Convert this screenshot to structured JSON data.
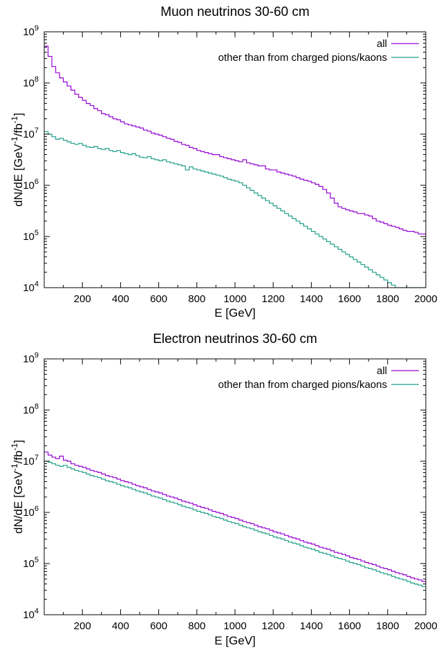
{
  "chart_data": [
    {
      "type": "line",
      "title": "Muon neutrinos 30-60 cm",
      "xlabel": "E [GeV]",
      "ylabel": {
        "base": "dN/dE [GeV",
        "exp1": "-1",
        "mid": "/fb",
        "exp2": "-1",
        "end": "]"
      },
      "xlim": [
        0,
        2000
      ],
      "ylim": [
        10000,
        1000000000
      ],
      "yscale": "log",
      "x_ticks": [
        200,
        400,
        600,
        800,
        1000,
        1200,
        1400,
        1600,
        1800,
        2000
      ],
      "y_ticks": [
        {
          "value": 10000,
          "base": "10",
          "exp": "4"
        },
        {
          "value": 100000,
          "base": "10",
          "exp": "5"
        },
        {
          "value": 1000000,
          "base": "10",
          "exp": "6"
        },
        {
          "value": 10000000,
          "base": "10",
          "exp": "7"
        },
        {
          "value": 100000000,
          "base": "10",
          "exp": "8"
        },
        {
          "value": 1000000000,
          "base": "10",
          "exp": "9"
        }
      ],
      "bin_width": 20,
      "legend_position": "top-right",
      "series": [
        {
          "name": "all",
          "color": "#9400d3",
          "log10_values": [
            8.72,
            8.52,
            8.32,
            8.2,
            8.1,
            8.02,
            7.94,
            7.86,
            7.78,
            7.72,
            7.66,
            7.6,
            7.56,
            7.5,
            7.46,
            7.4,
            7.38,
            7.34,
            7.3,
            7.28,
            7.24,
            7.2,
            7.18,
            7.16,
            7.14,
            7.12,
            7.08,
            7.06,
            7.02,
            7.0,
            6.98,
            6.95,
            6.92,
            6.9,
            6.86,
            6.84,
            6.8,
            6.78,
            6.74,
            6.72,
            6.68,
            6.66,
            6.64,
            6.62,
            6.6,
            6.6,
            6.56,
            6.54,
            6.52,
            6.5,
            6.48,
            6.46,
            6.5,
            6.44,
            6.42,
            6.4,
            6.38,
            6.38,
            6.32,
            6.3,
            6.3,
            6.26,
            6.24,
            6.22,
            6.2,
            6.18,
            6.15,
            6.12,
            6.1,
            6.08,
            6.05,
            6.02,
            5.98,
            5.92,
            5.85,
            5.75,
            5.65,
            5.58,
            5.55,
            5.52,
            5.5,
            5.48,
            5.45,
            5.45,
            5.42,
            5.4,
            5.35,
            5.3,
            5.28,
            5.25,
            5.22,
            5.2,
            5.18,
            5.15,
            5.12,
            5.1,
            5.1,
            5.08,
            5.05,
            5.05,
            5.02,
            5.0,
            4.95,
            4.92,
            4.9,
            4.9,
            4.88,
            4.85,
            4.85,
            4.8,
            4.82,
            4.8,
            4.78,
            4.75,
            4.72,
            4.72,
            4.7,
            4.68,
            4.65,
            4.62,
            4.6,
            4.62,
            4.58,
            4.55,
            4.52,
            4.52,
            4.5,
            4.48,
            4.46,
            4.44,
            4.42,
            4.4,
            4.38,
            4.36,
            4.35,
            4.35,
            4.32,
            4.3,
            4.3,
            4.28,
            4.26,
            4.25,
            4.24,
            4.22,
            4.2,
            4.18,
            4.17,
            4.16,
            4.15,
            4.14,
            4.13,
            4.12,
            4.11,
            4.1,
            4.1,
            4.09,
            4.08,
            4.08,
            4.07,
            4.06,
            4.05,
            4.05,
            4.04,
            4.04,
            4.03,
            4.03,
            4.02,
            4.02,
            4.01,
            4.01
          ]
        },
        {
          "name": "other than from charged pions/kaons",
          "color": "#1f9e89",
          "log10_values": [
            7.05,
            7.0,
            6.95,
            6.9,
            6.92,
            6.88,
            6.85,
            6.82,
            6.8,
            6.82,
            6.78,
            6.75,
            6.74,
            6.76,
            6.72,
            6.7,
            6.72,
            6.68,
            6.66,
            6.68,
            6.64,
            6.62,
            6.6,
            6.62,
            6.58,
            6.55,
            6.54,
            6.56,
            6.52,
            6.5,
            6.48,
            6.5,
            6.46,
            6.44,
            6.42,
            6.4,
            6.38,
            6.3,
            6.36,
            6.32,
            6.3,
            6.28,
            6.26,
            6.24,
            6.22,
            6.2,
            6.18,
            6.15,
            6.12,
            6.1,
            6.08,
            6.05,
            6.0,
            5.95,
            5.9,
            5.85,
            5.8,
            5.75,
            5.7,
            5.65,
            5.6,
            5.55,
            5.5,
            5.45,
            5.4,
            5.35,
            5.3,
            5.25,
            5.2,
            5.15,
            5.1,
            5.05,
            5.0,
            4.95,
            4.9,
            4.85,
            4.8,
            4.75,
            4.7,
            4.65,
            4.6,
            4.55,
            4.5,
            4.45,
            4.4,
            4.35,
            4.3,
            4.25,
            4.2,
            4.15,
            4.1,
            4.05,
            4.0,
            4.0,
            4.0,
            4.0,
            4.0,
            4.0,
            4.0,
            4.0,
            4.0,
            4.0,
            4.0,
            4.0,
            4.0,
            4.0,
            4.0,
            4.0,
            4.0,
            4.0,
            4.0,
            4.0,
            4.0,
            4.0,
            4.0,
            4.0,
            4.0,
            4.0,
            4.0,
            4.0,
            4.0,
            4.0,
            4.0,
            4.0,
            4.0,
            4.0,
            4.0,
            4.0,
            4.0,
            4.0,
            4.0,
            4.0,
            4.0,
            4.0,
            4.0,
            4.0,
            4.0,
            4.0,
            4.0,
            4.0,
            4.0,
            4.0,
            4.0,
            4.0,
            4.0,
            4.0,
            4.0,
            4.0,
            4.0,
            4.0,
            4.0,
            4.0,
            4.0,
            4.0,
            4.0,
            4.0,
            4.0,
            4.0,
            4.0,
            4.0,
            4.0,
            4.0,
            4.0,
            4.0,
            4.0,
            4.0,
            4.0,
            4.0,
            4.0,
            4.0
          ]
        }
      ]
    },
    {
      "type": "line",
      "title": "Electron neutrinos 30-60 cm",
      "xlabel": "E [GeV]",
      "ylabel": {
        "base": "dN/dE [GeV",
        "exp1": "-1",
        "mid": "/fb",
        "exp2": "-1",
        "end": "]"
      },
      "xlim": [
        0,
        2000
      ],
      "ylim": [
        10000,
        1000000000
      ],
      "yscale": "log",
      "x_ticks": [
        200,
        400,
        600,
        800,
        1000,
        1200,
        1400,
        1600,
        1800,
        2000
      ],
      "y_ticks": [
        {
          "value": 10000,
          "base": "10",
          "exp": "4"
        },
        {
          "value": 100000,
          "base": "10",
          "exp": "5"
        },
        {
          "value": 1000000,
          "base": "10",
          "exp": "6"
        },
        {
          "value": 10000000,
          "base": "10",
          "exp": "7"
        },
        {
          "value": 100000000,
          "base": "10",
          "exp": "8"
        },
        {
          "value": 1000000000,
          "base": "10",
          "exp": "9"
        }
      ],
      "bin_width": 20,
      "legend_position": "top-right",
      "series": [
        {
          "name": "all",
          "color": "#9400d3",
          "log10_values": [
            7.18,
            7.12,
            7.08,
            7.05,
            7.1,
            7.02,
            7.0,
            6.95,
            6.92,
            6.9,
            6.88,
            6.85,
            6.82,
            6.8,
            6.78,
            6.75,
            6.72,
            6.7,
            6.68,
            6.65,
            6.62,
            6.6,
            6.58,
            6.55,
            6.52,
            6.5,
            6.48,
            6.45,
            6.42,
            6.4,
            6.38,
            6.35,
            6.32,
            6.3,
            6.28,
            6.25,
            6.22,
            6.2,
            6.18,
            6.15,
            6.12,
            6.1,
            6.08,
            6.05,
            6.02,
            6.0,
            5.98,
            5.95,
            5.92,
            5.9,
            5.88,
            5.85,
            5.82,
            5.8,
            5.78,
            5.75,
            5.72,
            5.7,
            5.68,
            5.65,
            5.62,
            5.6,
            5.58,
            5.55,
            5.52,
            5.5,
            5.48,
            5.45,
            5.42,
            5.4,
            5.38,
            5.35,
            5.32,
            5.3,
            5.28,
            5.25,
            5.22,
            5.2,
            5.18,
            5.15,
            5.12,
            5.1,
            5.08,
            5.05,
            5.02,
            5.0,
            4.98,
            4.95,
            4.92,
            4.9,
            4.88,
            4.85,
            4.82,
            4.8,
            4.78,
            4.75,
            4.72,
            4.7,
            4.68,
            4.65,
            4.62,
            4.6,
            4.58,
            4.55,
            4.52,
            4.5,
            4.48,
            4.45,
            4.42,
            4.4,
            4.38,
            4.35,
            4.32,
            4.3,
            4.28,
            4.25,
            4.22,
            4.2,
            4.18,
            4.15,
            4.12,
            4.1,
            4.08,
            4.05,
            4.02,
            4.0,
            4.0,
            4.0,
            4.0,
            4.0,
            4.0,
            4.0,
            4.0,
            4.0,
            4.0,
            4.0,
            4.0,
            4.0,
            4.0,
            4.0,
            4.0,
            4.0,
            4.0,
            4.0,
            4.0,
            4.0,
            4.0,
            4.0,
            4.0,
            4.0,
            4.0,
            4.0,
            4.0,
            4.0,
            4.0,
            4.0,
            4.0,
            4.0,
            4.0,
            4.0,
            4.0,
            4.0,
            4.0,
            4.0,
            4.0,
            4.0,
            4.0,
            4.0,
            4.0,
            4.0,
            4.0,
            4.0,
            4.0,
            4.0
          ]
        },
        {
          "name": "other than from charged pions/kaons",
          "color": "#1f9e89",
          "log10_values": [
            7.0,
            6.98,
            6.95,
            6.92,
            6.9,
            6.92,
            6.88,
            6.85,
            6.82,
            6.8,
            6.78,
            6.75,
            6.72,
            6.7,
            6.68,
            6.65,
            6.62,
            6.6,
            6.58,
            6.55,
            6.52,
            6.5,
            6.48,
            6.45,
            6.42,
            6.4,
            6.38,
            6.35,
            6.32,
            6.3,
            6.28,
            6.25,
            6.22,
            6.2,
            6.18,
            6.15,
            6.12,
            6.1,
            6.08,
            6.05,
            6.02,
            6.0,
            5.98,
            5.95,
            5.92,
            5.9,
            5.88,
            5.85,
            5.82,
            5.8,
            5.78,
            5.75,
            5.72,
            5.7,
            5.68,
            5.65,
            5.62,
            5.6,
            5.58,
            5.55,
            5.52,
            5.5,
            5.48,
            5.45,
            5.42,
            5.4,
            5.38,
            5.35,
            5.32,
            5.3,
            5.28,
            5.25,
            5.22,
            5.2,
            5.18,
            5.15,
            5.12,
            5.1,
            5.08,
            5.05,
            5.02,
            5.0,
            4.98,
            4.95,
            4.92,
            4.9,
            4.88,
            4.85,
            4.82,
            4.8,
            4.78,
            4.75,
            4.72,
            4.7,
            4.68,
            4.65,
            4.62,
            4.6,
            4.58,
            4.55,
            4.52,
            4.5,
            4.48,
            4.45,
            4.42,
            4.4,
            4.38,
            4.35,
            4.32,
            4.3,
            4.28,
            4.25,
            4.22,
            4.2,
            4.18,
            4.15,
            4.12,
            4.1,
            4.08,
            4.05,
            4.02,
            4.0,
            4.0,
            4.0,
            4.0,
            4.0,
            4.0,
            4.0,
            4.0,
            4.0,
            4.0,
            4.0,
            4.0,
            4.0,
            4.0,
            4.0,
            4.0,
            4.0,
            4.0,
            4.0,
            4.0,
            4.0,
            4.0,
            4.0,
            4.0,
            4.0,
            4.0,
            4.0,
            4.0,
            4.0,
            4.0,
            4.0,
            4.0,
            4.0,
            4.0,
            4.0,
            4.0,
            4.0,
            4.0,
            4.0,
            4.0,
            4.0,
            4.0,
            4.0,
            4.0,
            4.0,
            4.0,
            4.0,
            4.0,
            4.0
          ]
        }
      ]
    }
  ]
}
